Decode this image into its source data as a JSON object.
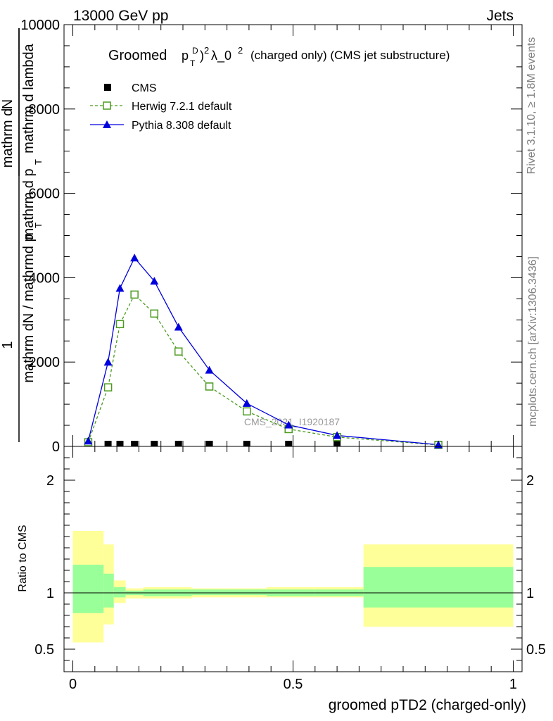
{
  "header": {
    "energy": "13000 GeV pp",
    "process": "Jets"
  },
  "side": {
    "rivet": "Rivet 3.1.10, ≥ 1.8M events",
    "mcplots": "mcplots.cern.ch [arXiv:1306.3436]"
  },
  "colors": {
    "cms": "#000000",
    "herwig": "#4a9a1e",
    "pythia": "#0000dd",
    "band_outer": "#ffff99",
    "band_inner": "#99ff99"
  },
  "chart_data": [
    {
      "type": "line",
      "title": {
        "prefix": "Groomed",
        "p": "p",
        "sup_D": "D",
        "sub_T": "T",
        "sq": "2",
        "lambda": "λ_0",
        "suffix": "(charged only) (CMS jet substructure)"
      },
      "ylabel": {
        "numerator": "1",
        "denominator": "mathrm dN / mathrmd p",
        "sub_T": "T",
        "num2": "mathrm d",
        "num2_rest": "N",
        "den2": "mathrm d p",
        "den2_rest": "mathrm d lambda"
      },
      "ylim": [
        0,
        10000
      ],
      "xlim": [
        -0.02,
        1.02
      ],
      "yticks": [
        "0",
        "2000",
        "4000",
        "6000",
        "8000",
        "10000"
      ],
      "watermark": "CMS_2021_I1920187",
      "legend": [
        {
          "label": "CMS",
          "marker": "square-filled"
        },
        {
          "label": "Herwig 7.2.1 default",
          "marker": "square-open",
          "dashed": true
        },
        {
          "label": "Pythia 8.308 default",
          "marker": "triangle"
        }
      ],
      "series": [
        {
          "name": "CMS",
          "x": [
            0.035,
            0.08,
            0.107,
            0.14,
            0.185,
            0.24,
            0.31,
            0.395,
            0.49,
            0.6,
            0.83
          ],
          "y": [
            0,
            0,
            0,
            0,
            0,
            0,
            0,
            0,
            0,
            0,
            0
          ]
        },
        {
          "name": "Herwig 7.2.1 default",
          "x": [
            0.035,
            0.08,
            0.107,
            0.14,
            0.185,
            0.24,
            0.31,
            0.395,
            0.49,
            0.6,
            0.83
          ],
          "y": [
            100,
            1400,
            2900,
            3600,
            3150,
            2250,
            1420,
            830,
            410,
            220,
            35
          ]
        },
        {
          "name": "Pythia 8.308 default",
          "x": [
            0.035,
            0.08,
            0.107,
            0.14,
            0.185,
            0.24,
            0.31,
            0.395,
            0.49,
            0.6,
            0.83
          ],
          "y": [
            130,
            2000,
            3750,
            4470,
            3920,
            2830,
            1810,
            1020,
            510,
            260,
            40
          ]
        }
      ]
    },
    {
      "type": "area",
      "ylabel": "Ratio to CMS",
      "xlabel": "groomed pTD2 (charged-only)",
      "ylim": [
        0.3,
        2.3
      ],
      "xlim": [
        -0.02,
        1.02
      ],
      "xticks": [
        "0",
        "0.5",
        "1"
      ],
      "yticks": [
        "0.5",
        "1",
        "2"
      ],
      "reference": 1,
      "bins": [
        {
          "lo": 0.0,
          "hi": 0.07,
          "outer": [
            0.56,
            1.55
          ],
          "inner": [
            0.82,
            1.25
          ]
        },
        {
          "lo": 0.07,
          "hi": 0.093,
          "outer": [
            0.72,
            1.43
          ],
          "inner": [
            0.87,
            1.17
          ]
        },
        {
          "lo": 0.093,
          "hi": 0.12,
          "outer": [
            0.91,
            1.11
          ],
          "inner": [
            0.96,
            1.05
          ]
        },
        {
          "lo": 0.12,
          "hi": 0.16,
          "outer": [
            0.95,
            1.04
          ],
          "inner": [
            0.98,
            1.02
          ]
        },
        {
          "lo": 0.16,
          "hi": 0.21,
          "outer": [
            0.95,
            1.05
          ],
          "inner": [
            0.97,
            1.03
          ]
        },
        {
          "lo": 0.21,
          "hi": 0.27,
          "outer": [
            0.95,
            1.05
          ],
          "inner": [
            0.97,
            1.03
          ]
        },
        {
          "lo": 0.27,
          "hi": 0.35,
          "outer": [
            0.96,
            1.04
          ],
          "inner": [
            0.98,
            1.03
          ]
        },
        {
          "lo": 0.35,
          "hi": 0.44,
          "outer": [
            0.96,
            1.04
          ],
          "inner": [
            0.98,
            1.03
          ]
        },
        {
          "lo": 0.44,
          "hi": 0.55,
          "outer": [
            0.96,
            1.05
          ],
          "inner": [
            0.97,
            1.03
          ]
        },
        {
          "lo": 0.55,
          "hi": 0.66,
          "outer": [
            0.96,
            1.05
          ],
          "inner": [
            0.97,
            1.03
          ]
        },
        {
          "lo": 0.66,
          "hi": 1.0,
          "outer": [
            0.7,
            1.43
          ],
          "inner": [
            0.87,
            1.23
          ]
        }
      ]
    }
  ]
}
